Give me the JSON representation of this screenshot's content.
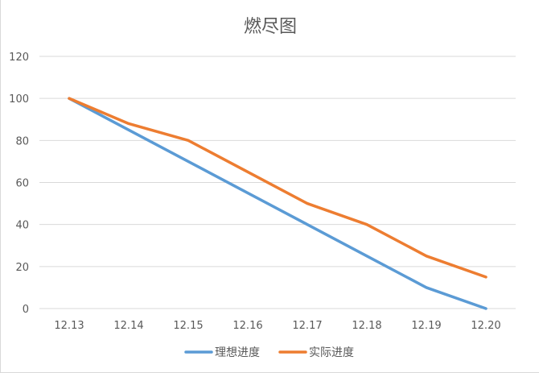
{
  "chart_data": {
    "type": "line",
    "title": "燃尽图",
    "categories": [
      "12.13",
      "12.14",
      "12.15",
      "12.16",
      "12.17",
      "12.18",
      "12.19",
      "12.20"
    ],
    "series": [
      {
        "name": "理想进度",
        "color": "#5b9bd5",
        "values": [
          100,
          85,
          70,
          55,
          40,
          25,
          10,
          0
        ]
      },
      {
        "name": "实际进度",
        "color": "#ed7d31",
        "values": [
          100,
          88,
          80,
          65,
          50,
          40,
          25,
          15
        ]
      }
    ],
    "yticks": [
      "0",
      "20",
      "40",
      "60",
      "80",
      "100",
      "120"
    ],
    "ylim": [
      0,
      120
    ],
    "grid": true,
    "legend": "bottom",
    "gridline_color": "#d9d9d9"
  }
}
